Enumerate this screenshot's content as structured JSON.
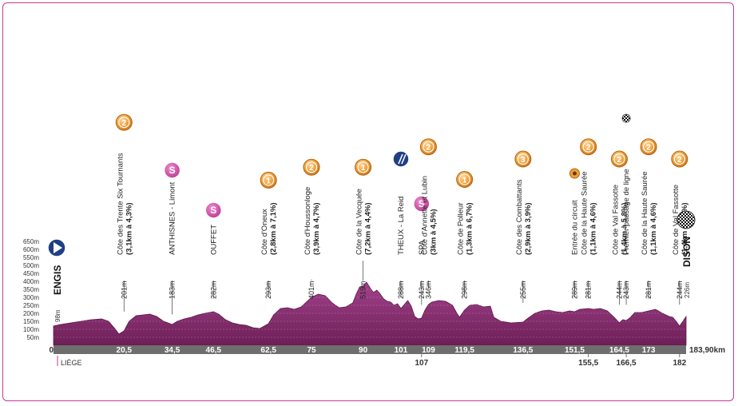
{
  "colors": {
    "border": "#c33a99",
    "profile_fill": "#8b2f72",
    "profile_stroke": "#5e1748",
    "baseline": "#6e6e6e",
    "climb_badge": "#ea8f1f",
    "sprint_badge": "#c6419b",
    "start_badge": "#1f3f86"
  },
  "y_axis": {
    "ticks": [
      "650m",
      "600m",
      "550m",
      "500m",
      "450m",
      "400m",
      "350m",
      "300m",
      "250m",
      "200m",
      "150m",
      "100m",
      "50m"
    ],
    "zero": "0"
  },
  "total_distance": "183,90km",
  "start": {
    "name": "ENGIS",
    "altitude": "98m",
    "sub": "LIÈGE"
  },
  "finish": {
    "name": "DISON",
    "altitude": "226m"
  },
  "km_marks": [
    "20,5",
    "34,5",
    "46,5",
    "62,5",
    "75",
    "90",
    "101",
    "109",
    "119,5",
    "136,5",
    "151,5",
    "164,5",
    "173",
    "107",
    "155,5",
    "166,5",
    "182"
  ],
  "points": [
    {
      "km": 20.5,
      "alt": "201m",
      "name": "Côte des Trente Six Tournants",
      "detail": "(3,1km à 4,3%)",
      "badge": "climb",
      "cat": "2"
    },
    {
      "km": 34.5,
      "alt": "183m",
      "name": "ANTHISNES - Limont",
      "detail": "",
      "badge": "sprint",
      "cat": "S"
    },
    {
      "km": 46.5,
      "alt": "282m",
      "name": "OUFFET",
      "detail": "",
      "badge": "sprint",
      "cat": "S"
    },
    {
      "km": 62.5,
      "alt": "293m",
      "name": "Côte d'Oneux",
      "detail": "(2,8km à 7,1%)",
      "badge": "climb",
      "cat": "1"
    },
    {
      "km": 75,
      "alt": "401m",
      "name": "Côte d'Houssonloge",
      "detail": "(3,9km à 4,7%)",
      "badge": "climb",
      "cat": "2"
    },
    {
      "km": 90,
      "alt": "519m",
      "name": "Côte de la Vecquée",
      "detail": "(7,2km à 4,4%)",
      "badge": "climb",
      "cat": "1"
    },
    {
      "km": 101,
      "alt": "288m",
      "name": "THEUX - La Reid",
      "detail": "",
      "badge": "feed",
      "cat": ""
    },
    {
      "km": 107,
      "alt": "243m",
      "name": "SPA",
      "detail": "",
      "badge": "sprint",
      "cat": "S"
    },
    {
      "km": 109,
      "alt": "346m",
      "name": "Côte d'Annette et Lubin",
      "detail": "(3km à 4,5%)",
      "badge": "climb",
      "cat": "2"
    },
    {
      "km": 119.5,
      "alt": "298m",
      "name": "Côte de Polleur",
      "detail": "(1,3km à 6,7%)",
      "badge": "climb",
      "cat": "1"
    },
    {
      "km": 136.5,
      "alt": "255m",
      "name": "Côte des Combattants",
      "detail": "(2,9km à 3,9%)",
      "badge": "climb",
      "cat": "3"
    },
    {
      "km": 151.5,
      "alt": "289m",
      "name": "Entrée du circuit",
      "detail": "",
      "badge": "circuit",
      "cat": ""
    },
    {
      "km": 155.5,
      "alt": "281m",
      "name": "Côte de la Haute Saurée",
      "detail": "(1,1km à 4,6%)",
      "badge": "climb",
      "cat": "2"
    },
    {
      "km": 164.5,
      "alt": "244m",
      "name": "Côte de Val Fassotte",
      "detail": "(1,4km à 5,8%)",
      "badge": "climb",
      "cat": "2"
    },
    {
      "km": 166.5,
      "alt": "243m",
      "name": "Premier passage de ligne",
      "detail": "",
      "badge": "flag",
      "cat": ""
    },
    {
      "km": 173,
      "alt": "281m",
      "name": "Côte de la Haute Saurée",
      "detail": "(1,1km à 4,6%)",
      "badge": "climb",
      "cat": "2"
    },
    {
      "km": 182,
      "alt": "244m",
      "name": "Côte de Val Fassotte",
      "detail": "(1,4km à 5,8%)",
      "badge": "climb",
      "cat": "2"
    }
  ]
}
